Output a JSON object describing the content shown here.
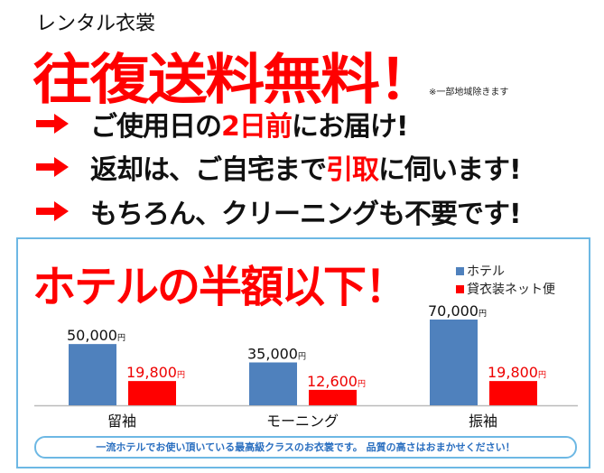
{
  "header": {
    "subtitle": "レンタル衣裳",
    "headline": "往復送料無料！",
    "note": "※一部地域除きます"
  },
  "features": [
    {
      "icon": "arrow-right-icon",
      "parts": [
        {
          "text": "ご使用日の",
          "red": false
        },
        {
          "text": "2日前",
          "red": true
        },
        {
          "text": "にお届け!",
          "red": false
        }
      ]
    },
    {
      "icon": "arrow-right-icon",
      "parts": [
        {
          "text": "返却は、ご自宅まで",
          "red": false
        },
        {
          "text": "引取",
          "red": true
        },
        {
          "text": "に伺います!",
          "red": false
        }
      ]
    },
    {
      "icon": "arrow-right-icon",
      "parts": [
        {
          "text": "もちろん、クリーニングも不要です!",
          "red": false
        }
      ]
    }
  ],
  "colors": {
    "accent_red": "#ff0000",
    "hotel_blue": "#4f81bd",
    "frame_blue": "#6db8e4"
  },
  "chart_data": {
    "type": "bar",
    "title": "ホテルの半額以下！",
    "categories": [
      "留袖",
      "モーニング",
      "振袖"
    ],
    "series": [
      {
        "name": "ホテル",
        "color": "#4f81bd",
        "values": [
          50000,
          35000,
          70000
        ],
        "labels": [
          "50,000",
          "35,000",
          "70,000"
        ]
      },
      {
        "name": "貸衣装ネット便",
        "color": "#ff0000",
        "values": [
          19800,
          12600,
          19800
        ],
        "labels": [
          "19,800",
          "12,600",
          "19,800"
        ]
      }
    ],
    "unit": "円",
    "ylim": [
      0,
      70000
    ],
    "grid": false,
    "legend": "top-right"
  },
  "footer": {
    "message": "一流ホテルでお使い頂いている最高級クラスのお衣裳です。 品質の高さはおまかせください！"
  }
}
